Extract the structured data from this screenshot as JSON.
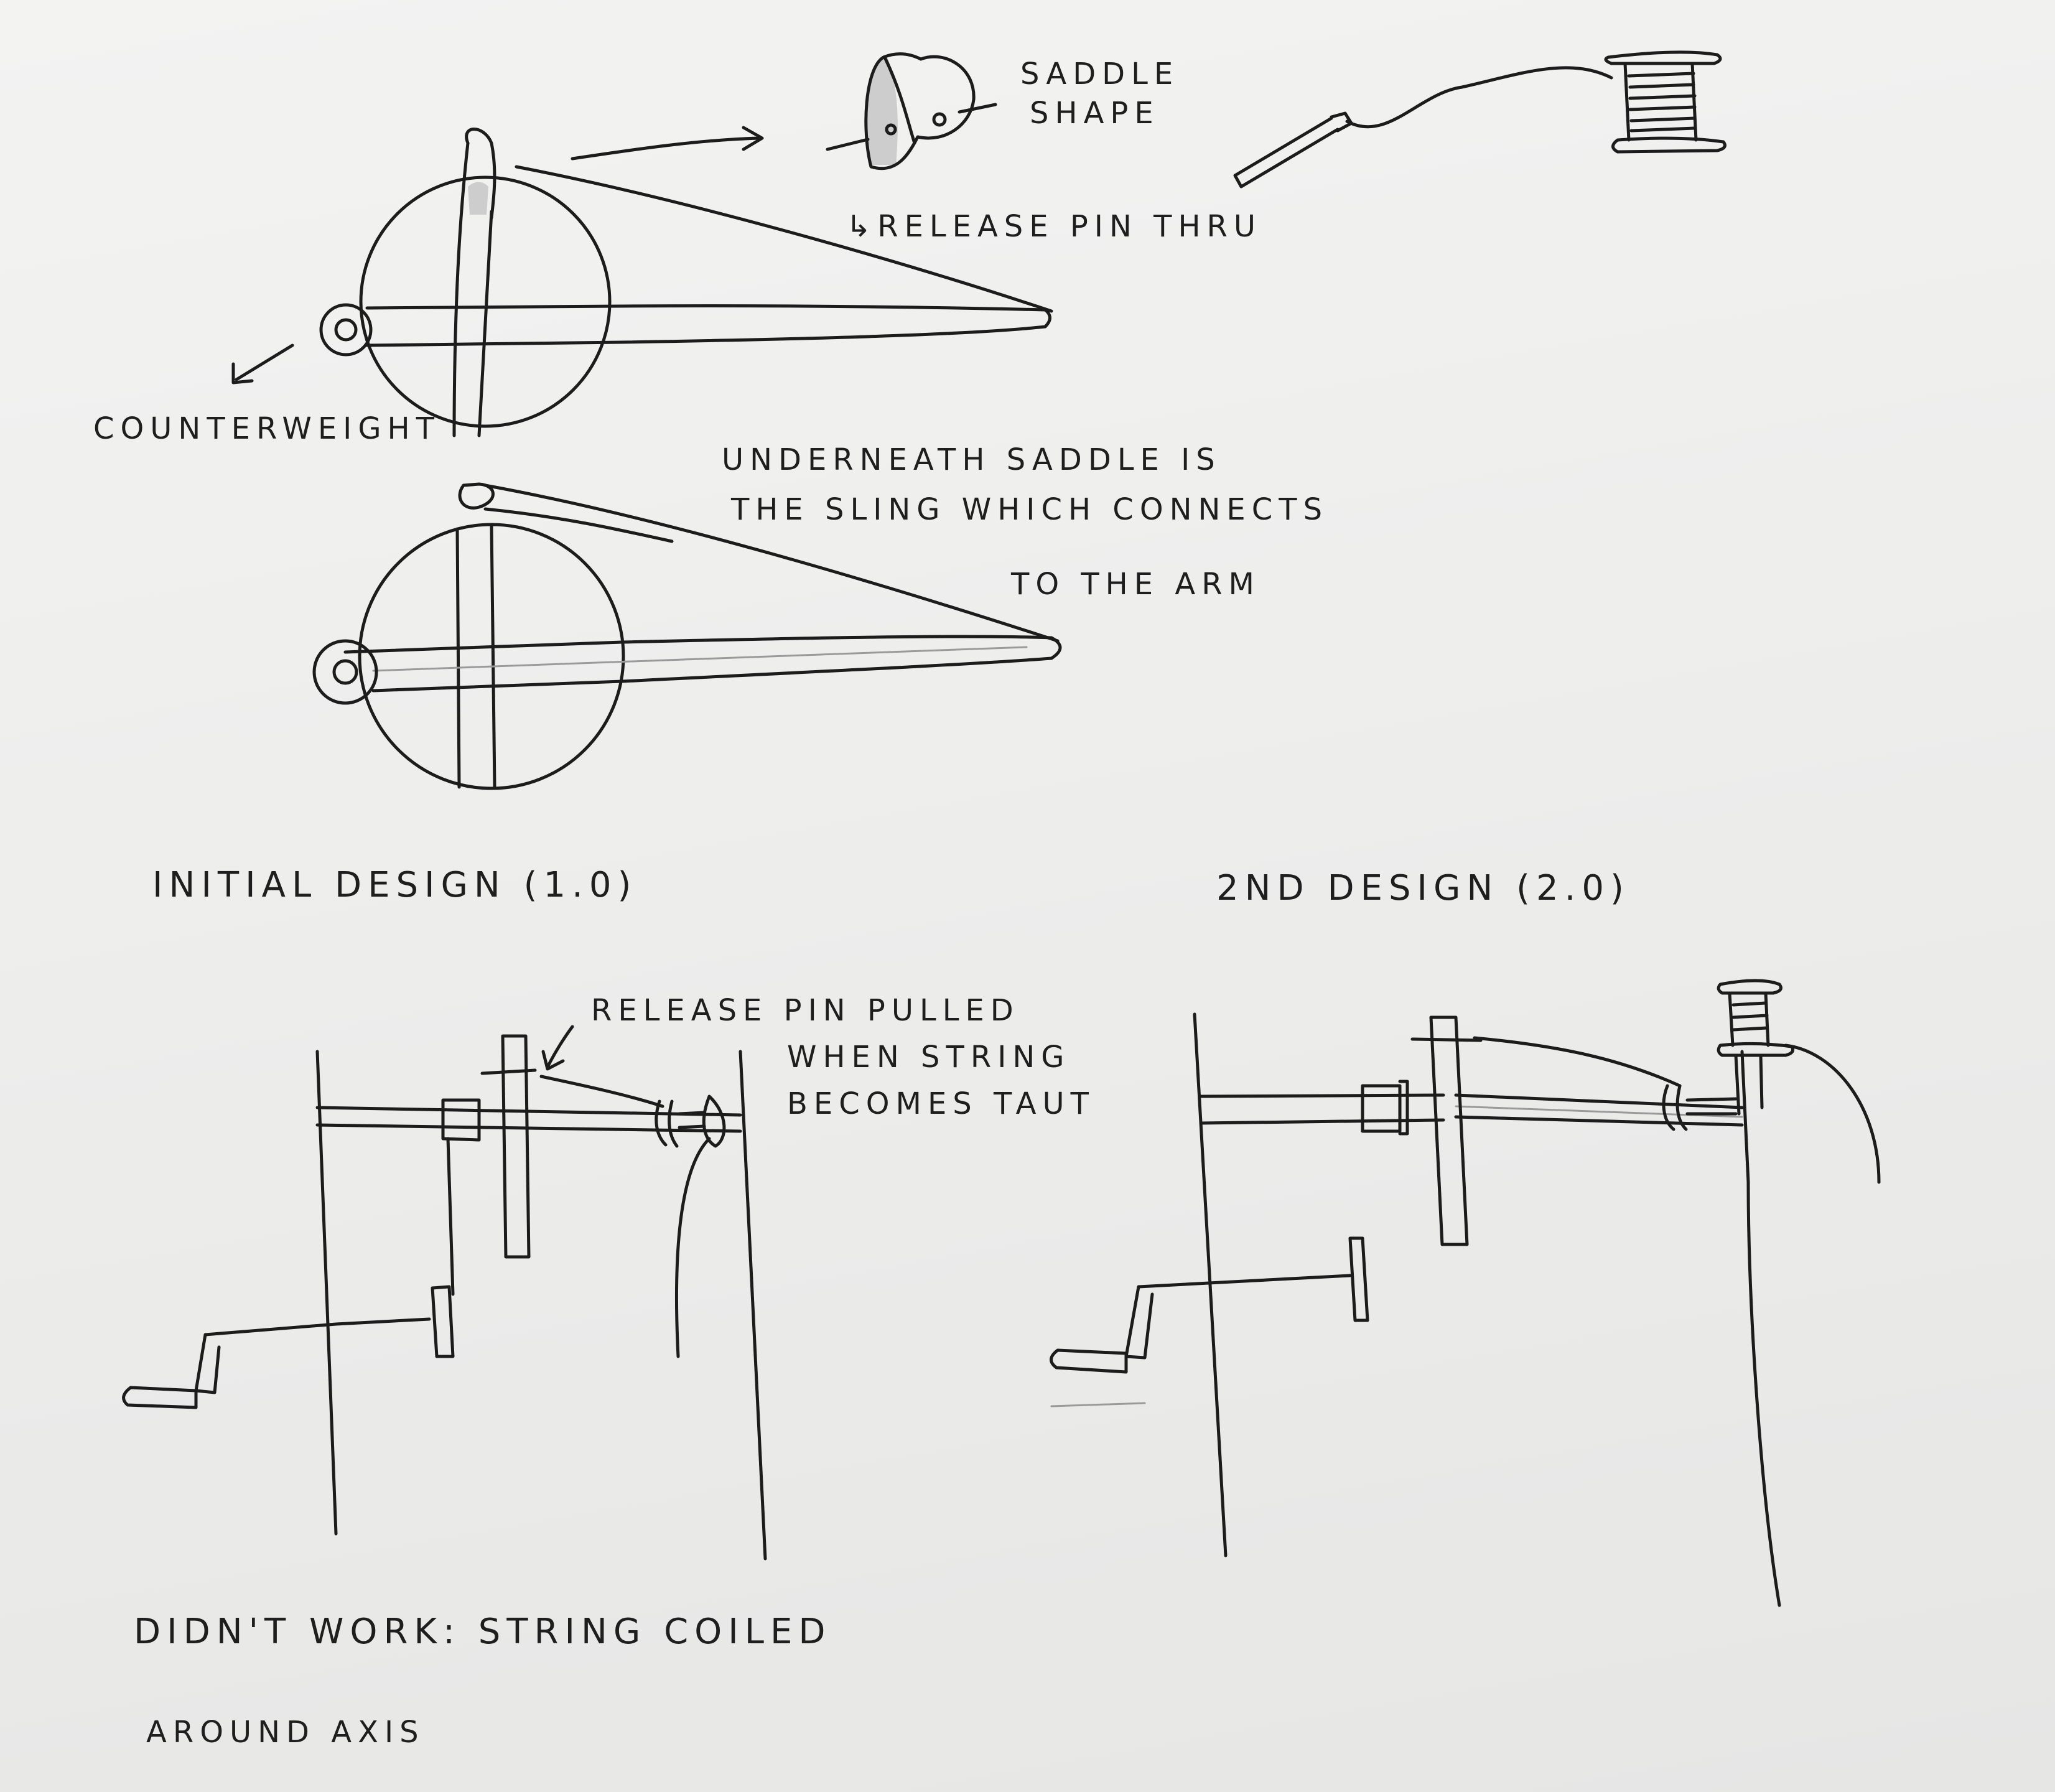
{
  "notes": {
    "saddle_shape": [
      "SADDLE",
      "SHAPE"
    ],
    "release_pin_thru": "↳RELEASE PIN THRU",
    "counterweight": "COUNTERWEIGHT",
    "underneath": [
      "UNDERNEATH SADDLE IS",
      "THE SLING WHICH CONNECTS",
      "TO THE ARM"
    ],
    "initial_design": "INITIAL DESIGN (1.0)",
    "second_design": "2ND DESIGN (2.0)",
    "release_pin_pulled": [
      "RELEASE PIN PULLED",
      "WHEN STRING",
      "BECOMES TAUT"
    ],
    "didnt_work": "DIDN'T WORK: STRING COILED",
    "around_axis": "AROUND AXIS"
  },
  "icons": {
    "spool": "spool-of-string-icon",
    "needle": "needle-with-thread-icon",
    "saddle": "saddle-icon"
  }
}
